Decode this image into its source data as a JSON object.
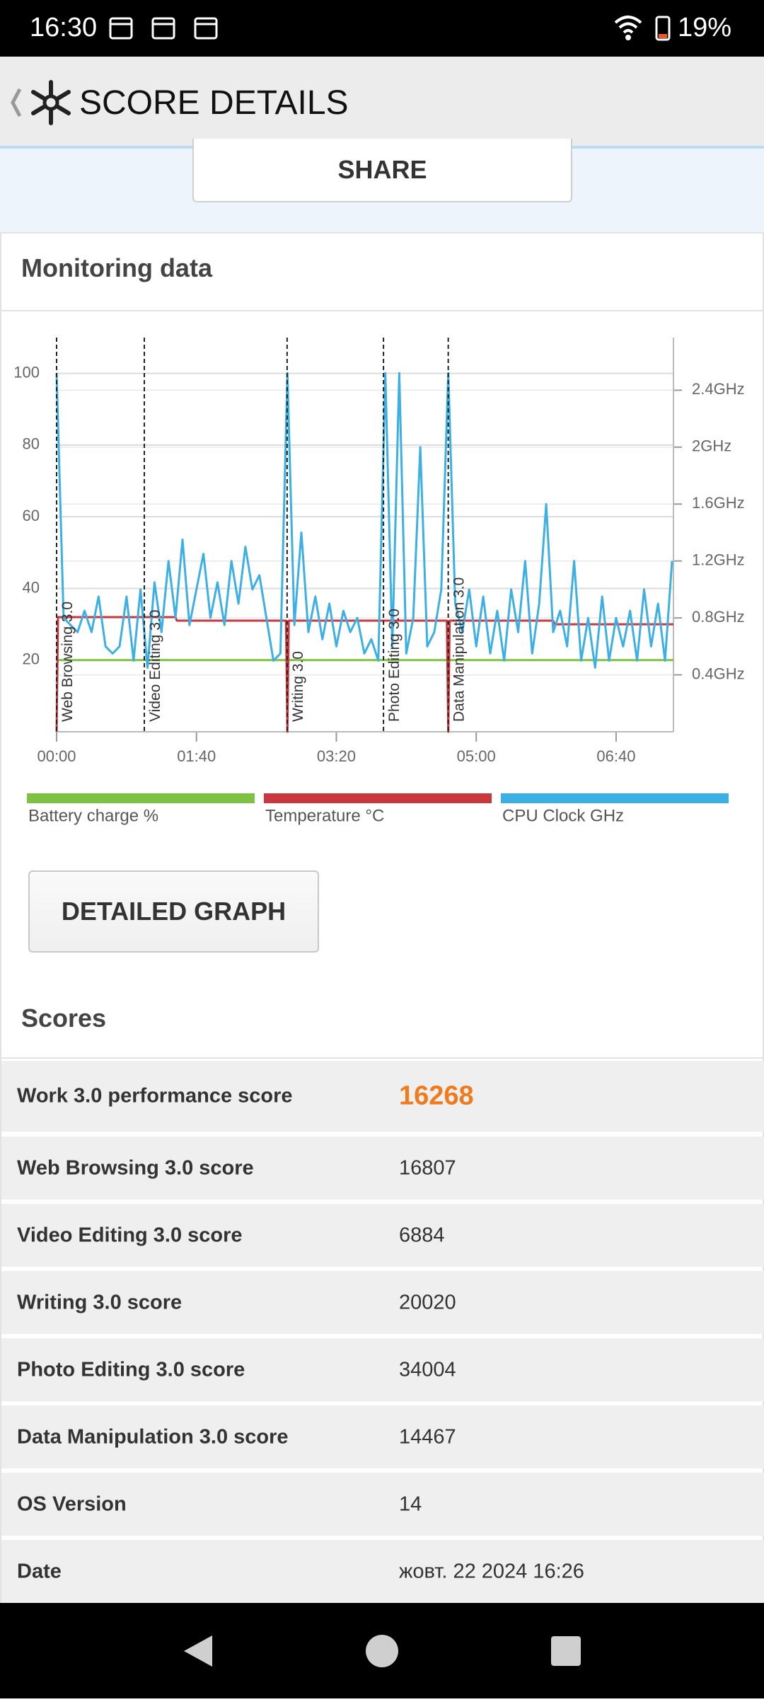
{
  "status_bar": {
    "time": "16:30",
    "battery": "19%"
  },
  "header": {
    "title": "SCORE DETAILS"
  },
  "share_button": "SHARE",
  "monitoring": {
    "title": "Monitoring data",
    "button": "DETAILED GRAPH"
  },
  "chart_data": {
    "type": "line",
    "xlim": [
      0,
      441
    ],
    "xticks": [
      {
        "value": 0,
        "label": "00:00"
      },
      {
        "value": 100,
        "label": "01:40"
      },
      {
        "value": 200,
        "label": "03:20"
      },
      {
        "value": 300,
        "label": "05:00"
      },
      {
        "value": 400,
        "label": "06:40"
      }
    ],
    "ylim": [
      0,
      110
    ],
    "yticks": [
      20,
      40,
      60,
      80,
      100
    ],
    "y2lim": [
      0,
      2.77
    ],
    "y2ticks": [
      {
        "value": 0.4,
        "label": "0.4GHz"
      },
      {
        "value": 0.8,
        "label": "0.8GHz"
      },
      {
        "value": 1.2,
        "label": "1.2GHz"
      },
      {
        "value": 1.6,
        "label": "1.6GHz"
      },
      {
        "value": 2,
        "label": "2GHz"
      },
      {
        "value": 2.4,
        "label": "2.4GHz"
      }
    ],
    "grid": true,
    "markers": [
      {
        "x": 0,
        "label": "Web Browsing 3.0"
      },
      {
        "x": 62.7,
        "label": "Video Editing 3.0"
      },
      {
        "x": 164.8,
        "label": "Writing 3.0"
      },
      {
        "x": 233.7,
        "label": "Photo Editing 3.0"
      },
      {
        "x": 280,
        "label": "Data Manipulation 3.0"
      }
    ],
    "series": [
      {
        "name": "Battery charge %",
        "color": "#7dc242",
        "x": [
          0,
          441
        ],
        "values": [
          20,
          20
        ]
      },
      {
        "name": "Temperature °C",
        "color": "#c8383c",
        "x": [
          0,
          1,
          85,
          86,
          164,
          165,
          166,
          279,
          280,
          281,
          355,
          356,
          441
        ],
        "values": [
          0,
          32,
          32,
          31,
          31,
          0,
          31,
          31,
          0,
          31,
          31,
          30,
          30
        ]
      },
      {
        "name": "CPU Clock GHz",
        "color": "#3cb0e4",
        "axis": "y2",
        "x": [
          0,
          5,
          10,
          15,
          20,
          25,
          30,
          35,
          40,
          45,
          50,
          55,
          60,
          65,
          70,
          75,
          80,
          85,
          90,
          95,
          100,
          105,
          110,
          115,
          120,
          125,
          130,
          135,
          140,
          145,
          150,
          155,
          160,
          165,
          170,
          175,
          180,
          185,
          190,
          195,
          200,
          205,
          210,
          215,
          220,
          225,
          230,
          235,
          240,
          245,
          250,
          255,
          260,
          265,
          270,
          275,
          280,
          285,
          290,
          295,
          300,
          305,
          310,
          315,
          320,
          325,
          330,
          335,
          340,
          345,
          350,
          355,
          360,
          365,
          370,
          375,
          380,
          385,
          390,
          395,
          400,
          405,
          410,
          415,
          420,
          425,
          430,
          435,
          440
        ],
        "values": [
          2.52,
          0.8,
          0.75,
          0.7,
          0.85,
          0.7,
          0.95,
          0.6,
          0.55,
          0.6,
          0.95,
          0.5,
          1.0,
          0.45,
          1.05,
          0.7,
          1.2,
          0.8,
          1.35,
          0.75,
          1.0,
          1.25,
          0.8,
          1.05,
          0.75,
          1.2,
          0.9,
          1.3,
          1.0,
          1.1,
          0.8,
          0.5,
          0.55,
          2.52,
          0.75,
          1.4,
          0.7,
          0.95,
          0.65,
          0.9,
          0.6,
          0.85,
          0.7,
          0.8,
          0.55,
          0.65,
          0.5,
          2.52,
          0.6,
          2.52,
          0.55,
          0.8,
          2.0,
          0.6,
          0.7,
          1.0,
          2.52,
          0.9,
          0.7,
          1.0,
          0.6,
          0.95,
          0.55,
          0.85,
          0.5,
          1.0,
          0.7,
          1.2,
          0.55,
          0.9,
          1.6,
          0.7,
          0.85,
          0.6,
          1.2,
          0.5,
          0.8,
          0.45,
          0.95,
          0.5,
          0.8,
          0.6,
          0.85,
          0.5,
          1.0,
          0.6,
          0.9,
          0.5,
          1.2
        ]
      }
    ]
  },
  "scores": {
    "title": "Scores",
    "rows": [
      [
        "Work 3.0 performance score",
        16268
      ],
      [
        "Web Browsing 3.0 score",
        16807
      ],
      [
        "Video Editing 3.0 score",
        6884
      ],
      [
        "Writing 3.0 score",
        20020
      ],
      [
        "Photo Editing 3.0 score",
        34004
      ],
      [
        "Data Manipulation 3.0 score",
        14467
      ],
      [
        "OS Version",
        14
      ],
      [
        "Date",
        "жовт. 22 2024 16:26"
      ]
    ]
  }
}
